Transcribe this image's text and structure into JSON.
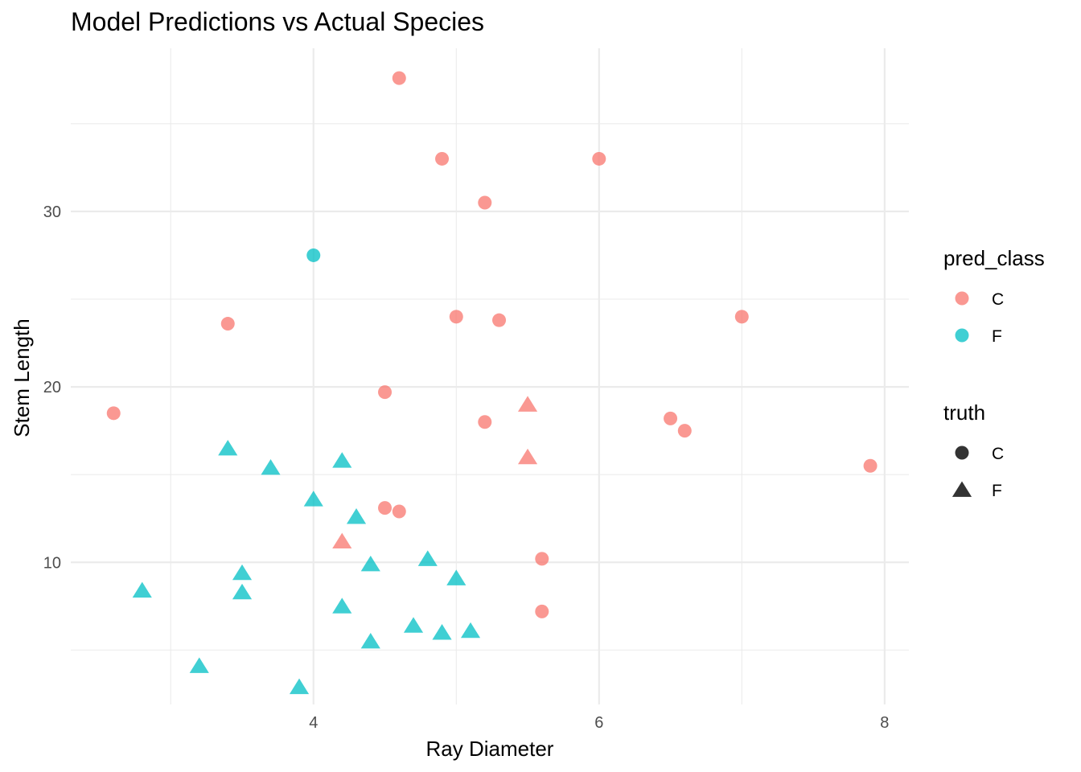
{
  "chart_data": {
    "type": "scatter",
    "title": "Model Predictions vs Actual Species",
    "xlabel": "Ray Diameter",
    "ylabel": "Stem Length",
    "xlim": [
      2.3,
      8.17
    ],
    "ylim": [
      1.9,
      39.3
    ],
    "x_ticks": [
      4,
      6,
      8
    ],
    "x_tick_labels": [
      "4",
      "6",
      "8"
    ],
    "y_ticks": [
      10,
      20,
      30
    ],
    "y_tick_labels": [
      "10",
      "20",
      "30"
    ],
    "grid": true,
    "legend_position": "right",
    "colors": {
      "C": "#F8766D",
      "F": "#00BFC4"
    },
    "legends": [
      {
        "title": "pred_class",
        "kind": "color",
        "entries": [
          "C",
          "F"
        ]
      },
      {
        "title": "truth",
        "kind": "shape",
        "entries": [
          "C",
          "F"
        ]
      }
    ],
    "points": [
      {
        "x": 4.6,
        "y": 37.6,
        "pred": "C",
        "truth": "C"
      },
      {
        "x": 4.9,
        "y": 33.0,
        "pred": "C",
        "truth": "C"
      },
      {
        "x": 6.0,
        "y": 33.0,
        "pred": "C",
        "truth": "C"
      },
      {
        "x": 5.2,
        "y": 30.5,
        "pred": "C",
        "truth": "C"
      },
      {
        "x": 4.0,
        "y": 27.5,
        "pred": "F",
        "truth": "C"
      },
      {
        "x": 3.4,
        "y": 23.6,
        "pred": "C",
        "truth": "C"
      },
      {
        "x": 5.0,
        "y": 24.0,
        "pred": "C",
        "truth": "C"
      },
      {
        "x": 5.3,
        "y": 23.8,
        "pred": "C",
        "truth": "C"
      },
      {
        "x": 7.0,
        "y": 24.0,
        "pred": "C",
        "truth": "C"
      },
      {
        "x": 2.6,
        "y": 18.5,
        "pred": "C",
        "truth": "C"
      },
      {
        "x": 4.5,
        "y": 19.7,
        "pred": "C",
        "truth": "C"
      },
      {
        "x": 5.2,
        "y": 18.0,
        "pred": "C",
        "truth": "C"
      },
      {
        "x": 6.5,
        "y": 18.2,
        "pred": "C",
        "truth": "C"
      },
      {
        "x": 6.6,
        "y": 17.5,
        "pred": "C",
        "truth": "C"
      },
      {
        "x": 7.9,
        "y": 15.5,
        "pred": "C",
        "truth": "C"
      },
      {
        "x": 4.5,
        "y": 13.1,
        "pred": "C",
        "truth": "C"
      },
      {
        "x": 4.6,
        "y": 12.9,
        "pred": "C",
        "truth": "C"
      },
      {
        "x": 5.6,
        "y": 10.2,
        "pred": "C",
        "truth": "C"
      },
      {
        "x": 5.6,
        "y": 7.2,
        "pred": "C",
        "truth": "C"
      },
      {
        "x": 5.5,
        "y": 19.0,
        "pred": "C",
        "truth": "F"
      },
      {
        "x": 5.5,
        "y": 16.0,
        "pred": "C",
        "truth": "F"
      },
      {
        "x": 4.2,
        "y": 11.2,
        "pred": "C",
        "truth": "F"
      },
      {
        "x": 3.4,
        "y": 16.5,
        "pred": "F",
        "truth": "F"
      },
      {
        "x": 3.7,
        "y": 15.4,
        "pred": "F",
        "truth": "F"
      },
      {
        "x": 4.2,
        "y": 15.8,
        "pred": "F",
        "truth": "F"
      },
      {
        "x": 4.0,
        "y": 13.6,
        "pred": "F",
        "truth": "F"
      },
      {
        "x": 4.3,
        "y": 12.6,
        "pred": "F",
        "truth": "F"
      },
      {
        "x": 2.8,
        "y": 8.4,
        "pred": "F",
        "truth": "F"
      },
      {
        "x": 3.5,
        "y": 9.4,
        "pred": "F",
        "truth": "F"
      },
      {
        "x": 3.5,
        "y": 8.3,
        "pred": "F",
        "truth": "F"
      },
      {
        "x": 4.4,
        "y": 9.9,
        "pred": "F",
        "truth": "F"
      },
      {
        "x": 4.8,
        "y": 10.2,
        "pred": "F",
        "truth": "F"
      },
      {
        "x": 5.0,
        "y": 9.1,
        "pred": "F",
        "truth": "F"
      },
      {
        "x": 4.2,
        "y": 7.5,
        "pred": "F",
        "truth": "F"
      },
      {
        "x": 4.7,
        "y": 6.4,
        "pred": "F",
        "truth": "F"
      },
      {
        "x": 4.9,
        "y": 6.0,
        "pred": "F",
        "truth": "F"
      },
      {
        "x": 5.1,
        "y": 6.1,
        "pred": "F",
        "truth": "F"
      },
      {
        "x": 4.4,
        "y": 5.5,
        "pred": "F",
        "truth": "F"
      },
      {
        "x": 3.2,
        "y": 4.1,
        "pred": "F",
        "truth": "F"
      },
      {
        "x": 3.9,
        "y": 2.9,
        "pred": "F",
        "truth": "F"
      }
    ]
  }
}
